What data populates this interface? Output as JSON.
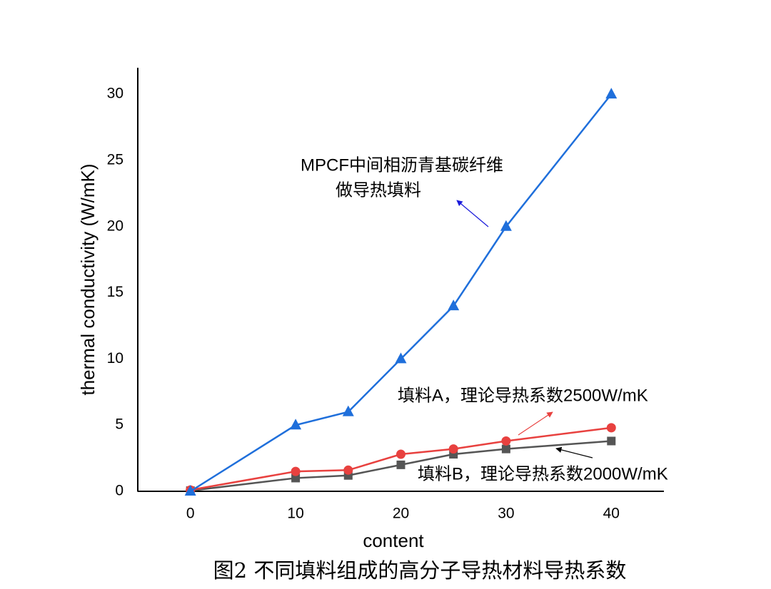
{
  "chart_data": {
    "type": "line",
    "title": "图2 不同填料组成的高分子导热材料导热系数",
    "x_label": "content",
    "y_label": "thermal conductivity (W/mK)",
    "xlim": [
      -5,
      45
    ],
    "ylim": [
      0,
      32
    ],
    "xticks": [
      0,
      10,
      20,
      30,
      40
    ],
    "yticks": [
      0,
      5,
      10,
      15,
      20,
      25,
      30
    ],
    "grid": false,
    "x": [
      0,
      10,
      15,
      20,
      25,
      30,
      40
    ],
    "series": [
      {
        "color": "#1f6fdb",
        "marker": "triangle",
        "values": [
          0,
          5,
          6,
          10,
          14,
          20,
          30
        ]
      },
      {
        "color": "#e8413f",
        "marker": "circle",
        "values": [
          0.1,
          1.5,
          1.6,
          2.8,
          3.2,
          3.8,
          4.8
        ]
      },
      {
        "color": "#555555",
        "marker": "square",
        "values": [
          0.05,
          1.0,
          1.2,
          2.0,
          2.8,
          3.2,
          3.8
        ]
      }
    ],
    "annotations": [
      {
        "lines": [
          "MPCF中间相沥青基碳纤维",
          "做导热填料"
        ],
        "color": "#1a1adb"
      },
      {
        "lines": [
          "填料A，理论导热系数2500W/mK"
        ],
        "color": "#e8413f"
      },
      {
        "lines": [
          "填料B，理论导热系数2000W/mK"
        ],
        "color": "#000000"
      }
    ]
  }
}
